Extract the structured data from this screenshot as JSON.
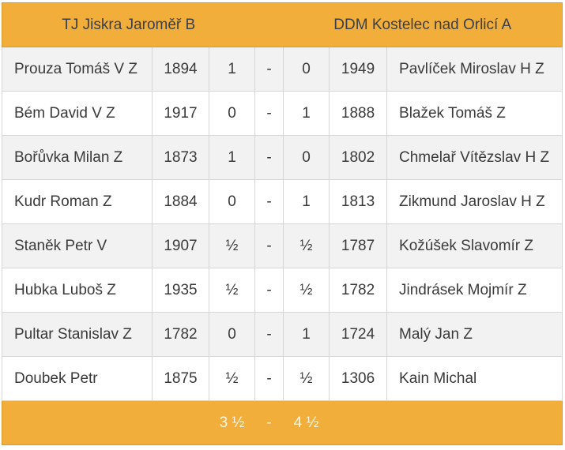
{
  "header": {
    "home_team": "TJ Jiskra Jaroměř B",
    "away_team": "DDM Kostelec nad Orlicí A"
  },
  "rows": [
    {
      "home_player": "Prouza Tomáš V Z",
      "home_rating": "1894",
      "home_score": "1",
      "sep": "-",
      "away_score": "0",
      "away_rating": "1949",
      "away_player": "Pavlíček Miroslav H Z"
    },
    {
      "home_player": "Bém David V Z",
      "home_rating": "1917",
      "home_score": "0",
      "sep": "-",
      "away_score": "1",
      "away_rating": "1888",
      "away_player": "Blažek Tomáš Z"
    },
    {
      "home_player": "Bořůvka Milan Z",
      "home_rating": "1873",
      "home_score": "1",
      "sep": "-",
      "away_score": "0",
      "away_rating": "1802",
      "away_player": "Chmelař Vítězslav H Z"
    },
    {
      "home_player": "Kudr Roman Z",
      "home_rating": "1884",
      "home_score": "0",
      "sep": "-",
      "away_score": "1",
      "away_rating": "1813",
      "away_player": "Zikmund Jaroslav H Z"
    },
    {
      "home_player": "Staněk Petr V",
      "home_rating": "1907",
      "home_score": "½",
      "sep": "-",
      "away_score": "½",
      "away_rating": "1787",
      "away_player": "Kožúšek Slavomír Z"
    },
    {
      "home_player": "Hubka Luboš Z",
      "home_rating": "1935",
      "home_score": "½",
      "sep": "-",
      "away_score": "½",
      "away_rating": "1782",
      "away_player": "Jindrásek Mojmír Z"
    },
    {
      "home_player": "Pultar Stanislav Z",
      "home_rating": "1782",
      "home_score": "0",
      "sep": "-",
      "away_score": "1",
      "away_rating": "1724",
      "away_player": "Malý Jan Z"
    },
    {
      "home_player": "Doubek Petr",
      "home_rating": "1875",
      "home_score": "½",
      "sep": "-",
      "away_score": "½",
      "away_rating": "1306",
      "away_player": "Kain Michal"
    }
  ],
  "footer": {
    "home_total": "3 ½",
    "sep": "-",
    "away_total": "4 ½"
  },
  "colors": {
    "header_bg": "#f1ae3a",
    "row_odd_bg": "#f2f2f2",
    "row_even_bg": "#ffffff",
    "footer_text": "#fff6e6"
  }
}
